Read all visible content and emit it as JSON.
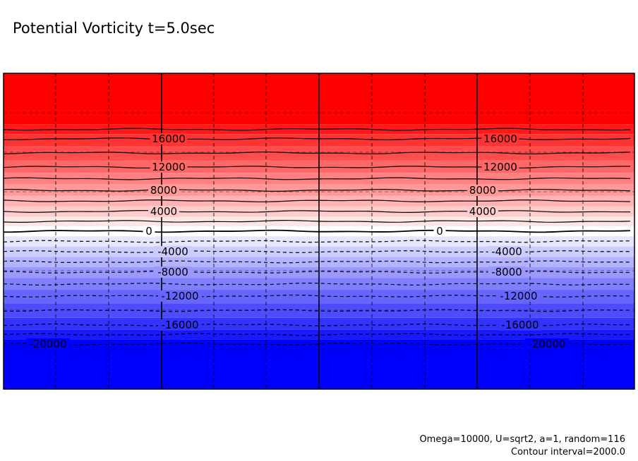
{
  "chart_data": {
    "type": "heatmap",
    "title": "Potential Vorticity t=5.0sec",
    "notes": [
      "Omega=10000, U=sqrt2, a=1, random=116",
      "Contour interval=2000.0"
    ],
    "contour_interval": 2000.0,
    "value_range": [
      -20000,
      20000
    ],
    "colormap": [
      "#0000ff",
      "#ffffff",
      "#ff0000"
    ],
    "grid": true,
    "bands": [
      {
        "value": 20000
      },
      {
        "value": 18000
      },
      {
        "value": 16000
      },
      {
        "value": 14000
      },
      {
        "value": 12000
      },
      {
        "value": 10000
      },
      {
        "value": 8000
      },
      {
        "value": 6000
      },
      {
        "value": 4000
      },
      {
        "value": 2000
      },
      {
        "value": 0
      },
      {
        "value": -2000
      },
      {
        "value": -4000
      },
      {
        "value": -6000
      },
      {
        "value": -8000
      },
      {
        "value": -10000
      },
      {
        "value": -12000
      },
      {
        "value": -14000
      },
      {
        "value": -16000
      },
      {
        "value": -18000
      },
      {
        "value": -20000
      }
    ],
    "contour_labels": [
      {
        "text": "16000",
        "value": 16000
      },
      {
        "text": "12000",
        "value": 12000
      },
      {
        "text": "8000",
        "value": 8000
      },
      {
        "text": "4000",
        "value": 4000
      },
      {
        "text": "0",
        "value": 0
      },
      {
        "text": "-4000",
        "value": -4000
      },
      {
        "text": "-8000",
        "value": -8000
      },
      {
        "text": "-12000",
        "value": -12000
      },
      {
        "text": "-16000",
        "value": -16000
      },
      {
        "text": "-20000",
        "value": -20000
      }
    ]
  }
}
